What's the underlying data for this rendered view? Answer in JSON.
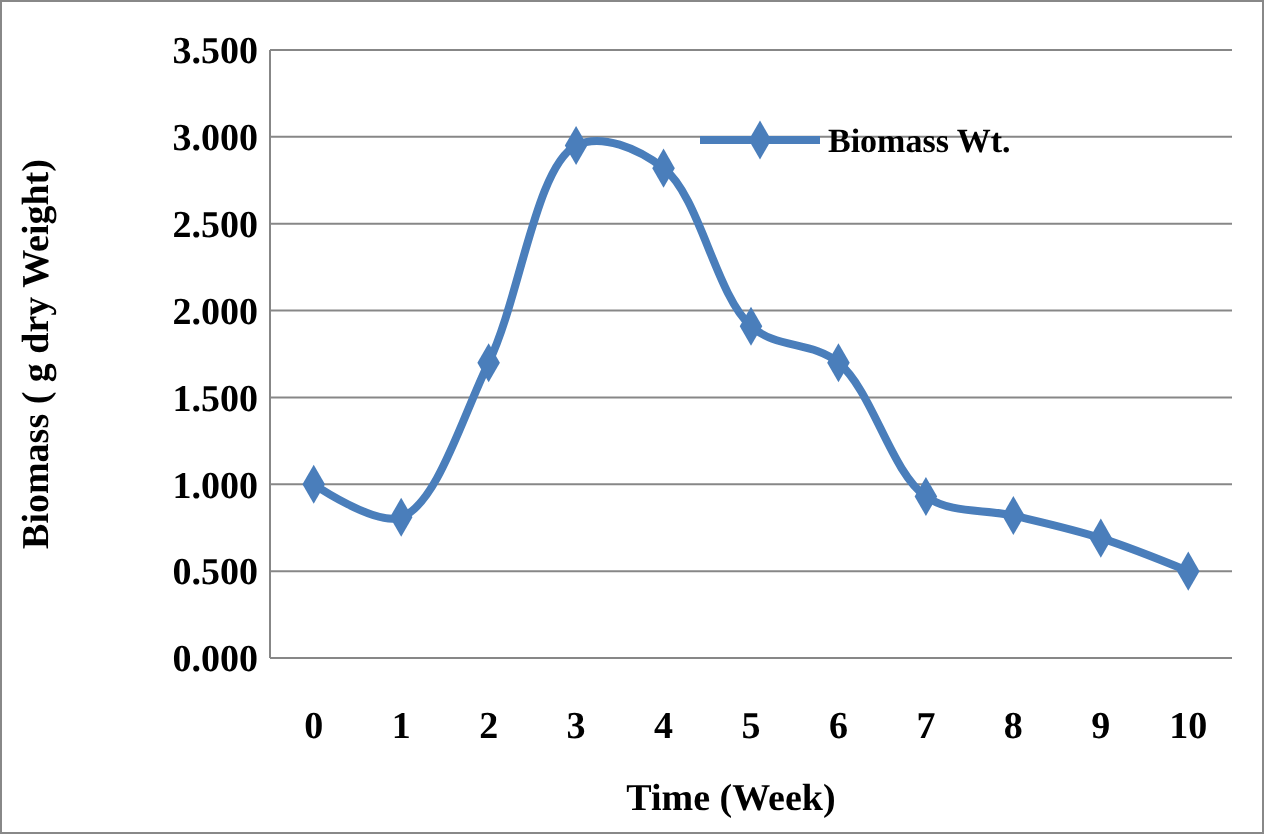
{
  "chart_data": {
    "type": "line",
    "xlabel": "Time (Week)",
    "ylabel": "Biomass ( g dry Weight)",
    "x": [
      0,
      1,
      2,
      3,
      4,
      5,
      6,
      7,
      8,
      9,
      10
    ],
    "series": [
      {
        "name": "Biomass Wt.",
        "color": "#4a7ebb",
        "values": [
          1.0,
          0.81,
          1.7,
          2.95,
          2.82,
          1.91,
          1.7,
          0.93,
          0.82,
          0.69,
          0.5
        ]
      }
    ],
    "xlim": [
      -0.5,
      10.5
    ],
    "xticks": [
      0,
      1,
      2,
      3,
      4,
      5,
      6,
      7,
      8,
      9,
      10
    ],
    "ylim": [
      0,
      3.5
    ],
    "yticks": [
      {
        "value": 0,
        "label": "0.000"
      },
      {
        "value": 0.5,
        "label": "0.500"
      },
      {
        "value": 1,
        "label": "1.000"
      },
      {
        "value": 1.5,
        "label": "1.500"
      },
      {
        "value": 2,
        "label": "2.000"
      },
      {
        "value": 2.5,
        "label": "2.500"
      },
      {
        "value": 3,
        "label": "3.000"
      },
      {
        "value": 3.5,
        "label": "3.500"
      }
    ],
    "grid": "y",
    "legend": "top right",
    "marker": "diamond",
    "line_style": "solid"
  }
}
